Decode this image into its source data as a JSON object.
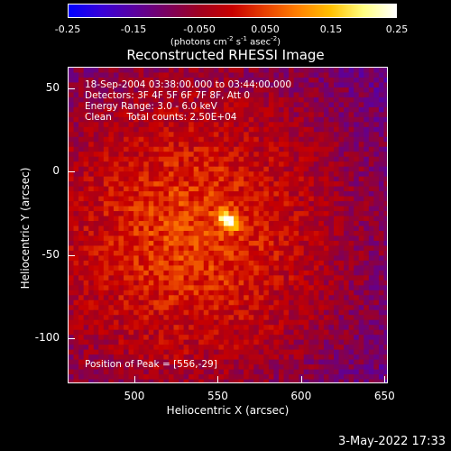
{
  "colorbar": {
    "ticks": [
      "-0.25",
      "-0.15",
      "-0.050",
      "0.050",
      "0.15",
      "0.25"
    ],
    "units_prefix": "(photons cm",
    "units_sup1": "-2",
    "units_mid1": " s",
    "units_sup2": "-1",
    "units_mid2": " asec",
    "units_sup3": "-2",
    "units_suffix": ")",
    "colormap": [
      "#0000ff",
      "#3800d8",
      "#5a00a0",
      "#7a0060",
      "#a00020",
      "#c80000",
      "#e84000",
      "#ff8000",
      "#ffc000",
      "#ffff80",
      "#ffffff"
    ]
  },
  "title": "Reconstructed RHESSI Image",
  "info": {
    "line1": "18-Sep-2004 03:38:00.000 to 03:44:00.000",
    "line2": "Detectors: 3F 4F 5F 6F 7F 8F, Att 0",
    "line3": "Energy Range: 3.0 - 6.0 keV",
    "line4": "Clean     Total counts: 2.50E+04",
    "peak": "Position of Peak = [556,-29]"
  },
  "axes": {
    "xlabel": "Heliocentric X (arcsec)",
    "ylabel": "Heliocentric Y (arcsec)",
    "xticks": [
      "500",
      "550",
      "600",
      "650"
    ],
    "yticks": [
      "50",
      "0",
      "-50",
      "-100"
    ]
  },
  "chart_data": {
    "type": "heatmap",
    "title": "Reconstructed RHESSI Image",
    "xlabel": "Heliocentric X (arcsec)",
    "ylabel": "Heliocentric Y (arcsec)",
    "xlim": [
      460,
      652
    ],
    "ylim": [
      -127,
      63
    ],
    "clim": [
      -0.25,
      0.25
    ],
    "peak": [
      556,
      -29
    ]
  },
  "timestamp": "3-May-2022 17:33"
}
